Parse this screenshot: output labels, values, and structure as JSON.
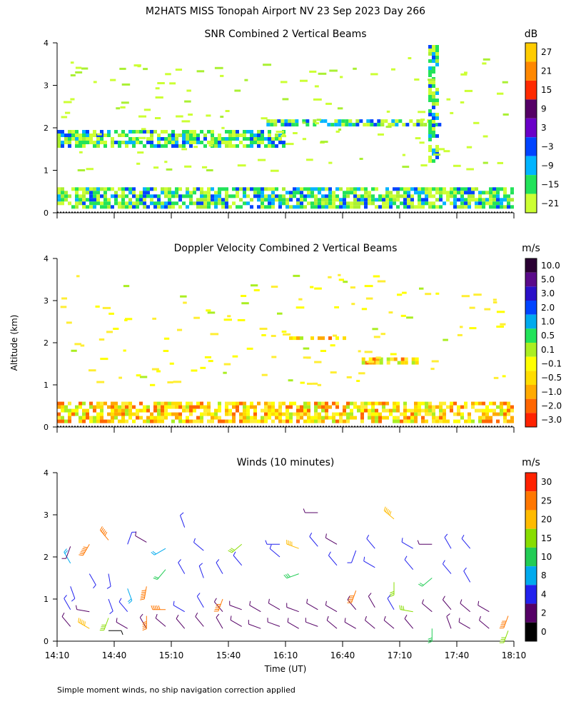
{
  "header": {
    "title": "M2HATS MISS Tonopah Airport NV  23 Sep 2023 Day 266"
  },
  "axes": {
    "ylabel": "Altitude (km)",
    "xlabel": "Time (UT)",
    "y_ticks": [
      "0",
      "1",
      "2",
      "3",
      "4"
    ],
    "x_ticks": [
      "14:10",
      "14:40",
      "15:10",
      "15:40",
      "16:10",
      "16:40",
      "17:10",
      "17:40",
      "18:10"
    ]
  },
  "footer": {
    "note": "Simple moment winds, no ship navigation correction applied"
  },
  "chart_data": [
    {
      "type": "heatmap",
      "title": "SNR Combined 2 Vertical Beams",
      "xlabel": "",
      "ylabel": "Altitude (km)",
      "x_range": [
        "14:10",
        "18:10"
      ],
      "ylim": [
        0,
        4
      ],
      "colorbar": {
        "unit": "dB",
        "labels": [
          "27",
          "21",
          "15",
          "9",
          "3",
          "−3",
          "−9",
          "−15",
          "−21"
        ],
        "colors": [
          "#ffcc00",
          "#ff8800",
          "#ff2a00",
          "#550066",
          "#6a00c8",
          "#0044ff",
          "#00b4ff",
          "#22e35a",
          "#ccff33"
        ]
      },
      "layers": [
        {
          "t": [
            "14:10",
            "18:10"
          ],
          "alt": [
            0.12,
            0.6
          ],
          "dominant": "−21 to −9 dB"
        },
        {
          "t": [
            "14:10",
            "16:10"
          ],
          "alt": [
            1.55,
            1.95
          ],
          "dominant": "−21 dB"
        },
        {
          "t": [
            "16:00",
            "17:30"
          ],
          "alt": [
            2.05,
            2.2
          ],
          "dominant": "−21 dB"
        },
        {
          "t": [
            "17:25",
            "17:30"
          ],
          "alt": [
            1.2,
            3.95
          ],
          "dominant": "−21 dB"
        }
      ]
    },
    {
      "type": "heatmap",
      "title": "Doppler Velocity Combined 2 Vertical Beams",
      "xlabel": "",
      "ylabel": "Altitude (km)",
      "x_range": [
        "14:10",
        "18:10"
      ],
      "ylim": [
        0,
        4
      ],
      "colorbar": {
        "unit": "m/s",
        "labels": [
          "10.0",
          "5.0",
          "3.0",
          "2.0",
          "1.0",
          "0.5",
          "0.1",
          "−0.1",
          "−0.5",
          "−1.0",
          "−2.0",
          "−3.0"
        ],
        "colors": [
          "#2a0033",
          "#5a0a8a",
          "#2a10c8",
          "#0044ff",
          "#00aaee",
          "#22e35a",
          "#aaee22",
          "#ffff00",
          "#ffdd00",
          "#ffaa00",
          "#ff6600",
          "#ff2200"
        ]
      },
      "layers": [
        {
          "t": [
            "14:10",
            "18:10"
          ],
          "alt": [
            0.12,
            0.6
          ],
          "dominant": "−0.5 to 0.1 m/s"
        },
        {
          "t": [
            "16:10",
            "16:45"
          ],
          "alt": [
            2.08,
            2.15
          ],
          "dominant": "−0.5 m/s"
        },
        {
          "t": [
            "16:50",
            "17:20"
          ],
          "alt": [
            1.5,
            1.65
          ],
          "dominant": "0.1 m/s"
        }
      ]
    },
    {
      "type": "scatter",
      "title": "Winds (10 minutes)",
      "xlabel": "Time (UT)",
      "ylabel": "Altitude (km)",
      "x_range": [
        "14:10",
        "18:10"
      ],
      "ylim": [
        0,
        4
      ],
      "marks": "wind barbs",
      "colorbar": {
        "unit": "m/s",
        "labels": [
          "30",
          "25",
          "20",
          "15",
          "10",
          "8",
          "4",
          "2",
          "0"
        ],
        "colors": [
          "#ff2200",
          "#ff7700",
          "#ffbb00",
          "#88dd00",
          "#22cc55",
          "#00aaee",
          "#2222ee",
          "#550066",
          "#000000"
        ]
      },
      "barbs": [
        {
          "t": "14:17",
          "alt": 0.35,
          "speed": 2,
          "dir": 320
        },
        {
          "t": "14:17",
          "alt": 0.75,
          "speed": 4,
          "dir": 330
        },
        {
          "t": "14:17",
          "alt": 1.3,
          "speed": 6,
          "dir": 160
        },
        {
          "t": "14:17",
          "alt": 1.85,
          "speed": 8,
          "dir": 330
        },
        {
          "t": "14:17",
          "alt": 2.25,
          "speed": 3,
          "dir": 200
        },
        {
          "t": "14:27",
          "alt": 0.3,
          "speed": 24,
          "dir": 300
        },
        {
          "t": "14:27",
          "alt": 0.7,
          "speed": 3,
          "dir": 280
        },
        {
          "t": "14:27",
          "alt": 1.6,
          "speed": 5,
          "dir": 150
        },
        {
          "t": "14:27",
          "alt": 2.3,
          "speed": 28,
          "dir": 210
        },
        {
          "t": "14:37",
          "alt": 0.25,
          "speed": 1,
          "dir": 90
        },
        {
          "t": "14:37",
          "alt": 0.55,
          "speed": 18,
          "dir": 200
        },
        {
          "t": "14:37",
          "alt": 1.0,
          "speed": 4,
          "dir": 160
        },
        {
          "t": "14:37",
          "alt": 1.6,
          "speed": 6,
          "dir": 170
        },
        {
          "t": "14:37",
          "alt": 2.4,
          "speed": 26,
          "dir": 320
        },
        {
          "t": "14:47",
          "alt": 0.3,
          "speed": 3,
          "dir": 300
        },
        {
          "t": "14:47",
          "alt": 0.7,
          "speed": 4,
          "dir": 320
        },
        {
          "t": "14:47",
          "alt": 1.25,
          "speed": 8,
          "dir": 160
        },
        {
          "t": "14:47",
          "alt": 2.3,
          "speed": 5,
          "dir": 20
        },
        {
          "t": "14:57",
          "alt": 0.3,
          "speed": 3,
          "dir": 330
        },
        {
          "t": "14:57",
          "alt": 0.6,
          "speed": 27,
          "dir": 180
        },
        {
          "t": "14:57",
          "alt": 1.3,
          "speed": 28,
          "dir": 190
        },
        {
          "t": "14:57",
          "alt": 2.35,
          "speed": 2,
          "dir": 300
        },
        {
          "t": "15:07",
          "alt": 0.35,
          "speed": 3,
          "dir": 310
        },
        {
          "t": "15:07",
          "alt": 0.75,
          "speed": 26,
          "dir": 270
        },
        {
          "t": "15:07",
          "alt": 1.7,
          "speed": 10,
          "dir": 220
        },
        {
          "t": "15:07",
          "alt": 2.2,
          "speed": 9,
          "dir": 240
        },
        {
          "t": "15:17",
          "alt": 0.3,
          "speed": 2,
          "dir": 320
        },
        {
          "t": "15:17",
          "alt": 0.7,
          "speed": 4,
          "dir": 300
        },
        {
          "t": "15:17",
          "alt": 1.6,
          "speed": 5,
          "dir": 330
        },
        {
          "t": "15:17",
          "alt": 2.7,
          "speed": 5,
          "dir": 340
        },
        {
          "t": "15:27",
          "alt": 0.35,
          "speed": 3,
          "dir": 320
        },
        {
          "t": "15:27",
          "alt": 0.8,
          "speed": 4,
          "dir": 330
        },
        {
          "t": "15:27",
          "alt": 1.5,
          "speed": 7,
          "dir": 340
        },
        {
          "t": "15:27",
          "alt": 2.15,
          "speed": 4,
          "dir": 310
        },
        {
          "t": "15:37",
          "alt": 0.3,
          "speed": 2,
          "dir": 330
        },
        {
          "t": "15:37",
          "alt": 0.7,
          "speed": 3,
          "dir": 320
        },
        {
          "t": "15:37",
          "alt": 1.0,
          "speed": 26,
          "dir": 200
        },
        {
          "t": "15:37",
          "alt": 1.6,
          "speed": 5,
          "dir": 330
        },
        {
          "t": "15:47",
          "alt": 0.35,
          "speed": 3,
          "dir": 300
        },
        {
          "t": "15:47",
          "alt": 0.75,
          "speed": 2,
          "dir": 290
        },
        {
          "t": "15:47",
          "alt": 2.3,
          "speed": 15,
          "dir": 230
        },
        {
          "t": "15:47",
          "alt": 1.8,
          "speed": 5,
          "dir": 320
        },
        {
          "t": "15:57",
          "alt": 0.3,
          "speed": 3,
          "dir": 290
        },
        {
          "t": "15:57",
          "alt": 0.7,
          "speed": 3,
          "dir": 300
        },
        {
          "t": "16:07",
          "alt": 0.35,
          "speed": 2,
          "dir": 290
        },
        {
          "t": "16:07",
          "alt": 0.75,
          "speed": 3,
          "dir": 300
        },
        {
          "t": "16:07",
          "alt": 2.0,
          "speed": 6,
          "dir": 310
        },
        {
          "t": "16:07",
          "alt": 2.3,
          "speed": 4,
          "dir": 270
        },
        {
          "t": "16:17",
          "alt": 0.3,
          "speed": 2,
          "dir": 300
        },
        {
          "t": "16:17",
          "alt": 0.7,
          "speed": 3,
          "dir": 290
        },
        {
          "t": "16:17",
          "alt": 1.6,
          "speed": 14,
          "dir": 250
        },
        {
          "t": "16:17",
          "alt": 2.2,
          "speed": 21,
          "dir": 290
        },
        {
          "t": "16:27",
          "alt": 0.35,
          "speed": 3,
          "dir": 290
        },
        {
          "t": "16:27",
          "alt": 0.75,
          "speed": 3,
          "dir": 300
        },
        {
          "t": "16:27",
          "alt": 2.25,
          "speed": 4,
          "dir": 320
        },
        {
          "t": "16:27",
          "alt": 3.05,
          "speed": 3,
          "dir": 270
        },
        {
          "t": "16:37",
          "alt": 0.3,
          "speed": 2,
          "dir": 310
        },
        {
          "t": "16:37",
          "alt": 0.7,
          "speed": 3,
          "dir": 300
        },
        {
          "t": "16:37",
          "alt": 1.8,
          "speed": 5,
          "dir": 320
        },
        {
          "t": "16:37",
          "alt": 2.3,
          "speed": 3,
          "dir": 300
        },
        {
          "t": "16:47",
          "alt": 0.3,
          "speed": 3,
          "dir": 300
        },
        {
          "t": "16:47",
          "alt": 0.75,
          "speed": 3,
          "dir": 320
        },
        {
          "t": "16:47",
          "alt": 1.2,
          "speed": 27,
          "dir": 200
        },
        {
          "t": "16:47",
          "alt": 2.15,
          "speed": 5,
          "dir": 200
        },
        {
          "t": "16:57",
          "alt": 0.3,
          "speed": 2,
          "dir": 310
        },
        {
          "t": "16:57",
          "alt": 0.8,
          "speed": 3,
          "dir": 330
        },
        {
          "t": "16:57",
          "alt": 1.75,
          "speed": 5,
          "dir": 300
        },
        {
          "t": "16:57",
          "alt": 2.2,
          "speed": 4,
          "dir": 320
        },
        {
          "t": "17:07",
          "alt": 0.3,
          "speed": 2,
          "dir": 310
        },
        {
          "t": "17:07",
          "alt": 0.75,
          "speed": 4,
          "dir": 330
        },
        {
          "t": "17:07",
          "alt": 1.4,
          "speed": 15,
          "dir": 180
        },
        {
          "t": "17:07",
          "alt": 2.9,
          "speed": 24,
          "dir": 310
        },
        {
          "t": "17:17",
          "alt": 0.3,
          "speed": 3,
          "dir": 320
        },
        {
          "t": "17:17",
          "alt": 0.7,
          "speed": 15,
          "dir": 280
        },
        {
          "t": "17:17",
          "alt": 1.7,
          "speed": 5,
          "dir": 320
        },
        {
          "t": "17:17",
          "alt": 2.2,
          "speed": 4,
          "dir": 300
        },
        {
          "t": "17:27",
          "alt": 0.3,
          "speed": 13,
          "dir": 180
        },
        {
          "t": "17:27",
          "alt": 0.7,
          "speed": 3,
          "dir": 310
        },
        {
          "t": "17:27",
          "alt": 1.5,
          "speed": 10,
          "dir": 230
        },
        {
          "t": "17:27",
          "alt": 2.3,
          "speed": 3,
          "dir": 270
        },
        {
          "t": "17:37",
          "alt": 0.3,
          "speed": 2,
          "dir": 340
        },
        {
          "t": "17:37",
          "alt": 0.75,
          "speed": 3,
          "dir": 320
        },
        {
          "t": "17:37",
          "alt": 1.6,
          "speed": 5,
          "dir": 320
        },
        {
          "t": "17:37",
          "alt": 2.2,
          "speed": 4,
          "dir": 330
        },
        {
          "t": "17:47",
          "alt": 0.3,
          "speed": 2,
          "dir": 300
        },
        {
          "t": "17:47",
          "alt": 0.7,
          "speed": 3,
          "dir": 310
        },
        {
          "t": "17:47",
          "alt": 1.4,
          "speed": 5,
          "dir": 330
        },
        {
          "t": "17:47",
          "alt": 2.2,
          "speed": 4,
          "dir": 320
        },
        {
          "t": "17:57",
          "alt": 0.3,
          "speed": 3,
          "dir": 310
        },
        {
          "t": "17:57",
          "alt": 0.7,
          "speed": 3,
          "dir": 300
        },
        {
          "t": "18:07",
          "alt": 0.25,
          "speed": 18,
          "dir": 200
        },
        {
          "t": "18:07",
          "alt": 0.6,
          "speed": 26,
          "dir": 200
        }
      ]
    }
  ]
}
